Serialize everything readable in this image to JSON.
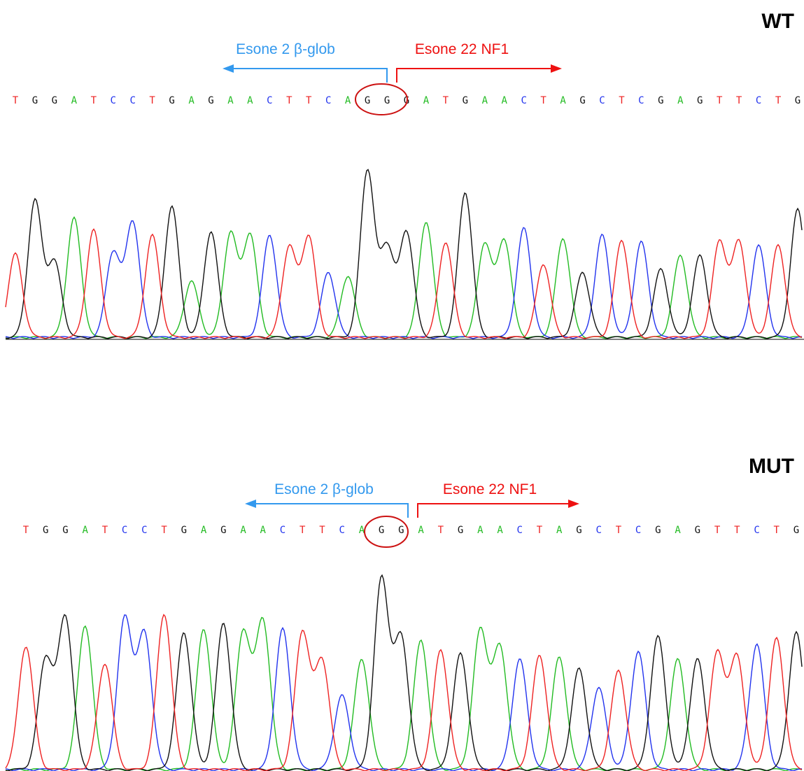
{
  "colors": {
    "A": "#22bb22",
    "C": "#2233ee",
    "G": "#111111",
    "T": "#ee2222",
    "exon2": "#3399ee",
    "exon22": "#ee1111",
    "circle": "#cc1111"
  },
  "sequence": "TGGATCCTGAGAACTTCAGGGATGAACTAGCTCGAGTTCTG",
  "panels": [
    {
      "id": "wt",
      "title": "WT",
      "exon_left_label": "Esone 2 β-glob",
      "exon_right_label": "Esone 22 NF1",
      "bases": [
        "T",
        "G",
        "G",
        "A",
        "T",
        "C",
        "C",
        "T",
        "G",
        "A",
        "G",
        "A",
        "A",
        "C",
        "T",
        "T",
        "C",
        "A",
        "G",
        "G",
        "G",
        "A",
        "T",
        "G",
        "A",
        "A",
        "C",
        "T",
        "A",
        "G",
        "C",
        "T",
        "C",
        "G",
        "A",
        "G",
        "T",
        "T",
        "C",
        "T",
        "G"
      ],
      "peak_heights": [
        0.49,
        0.8,
        0.44,
        0.7,
        0.63,
        0.5,
        0.68,
        0.6,
        0.77,
        0.33,
        0.62,
        0.61,
        0.6,
        0.6,
        0.53,
        0.59,
        0.38,
        0.36,
        0.98,
        0.53,
        0.62,
        0.68,
        0.56,
        0.85,
        0.55,
        0.57,
        0.64,
        0.43,
        0.58,
        0.38,
        0.6,
        0.57,
        0.56,
        0.4,
        0.48,
        0.48,
        0.56,
        0.56,
        0.54,
        0.54,
        0.75
      ]
    },
    {
      "id": "mut",
      "title": "MUT",
      "exon_left_label": "Esone 2 β-glob",
      "exon_right_label": "Esone 22 NF1",
      "bases": [
        "T",
        "G",
        "G",
        "A",
        "T",
        "C",
        "C",
        "T",
        "G",
        "A",
        "G",
        "A",
        "A",
        "C",
        "T",
        "T",
        "C",
        "A",
        "G",
        "G",
        "A",
        "T",
        "G",
        "A",
        "A",
        "C",
        "T",
        "A",
        "G",
        "C",
        "T",
        "C",
        "G",
        "A",
        "G",
        "T",
        "T",
        "C",
        "T",
        "G"
      ],
      "peak_heights": [
        0.65,
        0.58,
        0.8,
        0.76,
        0.56,
        0.79,
        0.71,
        0.82,
        0.72,
        0.74,
        0.77,
        0.72,
        0.78,
        0.74,
        0.72,
        0.57,
        0.39,
        0.58,
        1.0,
        0.69,
        0.68,
        0.63,
        0.61,
        0.73,
        0.64,
        0.58,
        0.6,
        0.59,
        0.53,
        0.43,
        0.52,
        0.62,
        0.7,
        0.58,
        0.58,
        0.61,
        0.59,
        0.66,
        0.69,
        0.72
      ]
    }
  ]
}
